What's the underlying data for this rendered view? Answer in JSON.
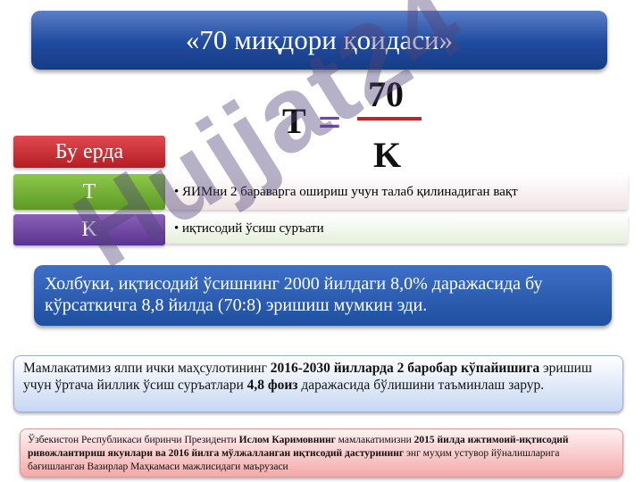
{
  "title": "«70 миқдори қоидаси»",
  "formula": {
    "lhs": "T",
    "eq": "=",
    "numerator": "70",
    "denominator": "K"
  },
  "legend": {
    "header": "Бу ерда",
    "rows": [
      {
        "term": "T",
        "color": "#6aa82c",
        "text": "ЯИМни 2 бараварга ошириш учун талаб қилинадиган вақт"
      },
      {
        "term": "K",
        "color": "#6a3f9a",
        "text": "иқтисодий ўсиш суръати"
      }
    ],
    "header_color": "#c0232b"
  },
  "note_blue": "Холбуки, иқтисодий ўсишнинг 2000 йилдаги 8,0% даражасида бу кўрсаткичга 8,8 йилда (70:8) эришиш мумкин эди.",
  "note_light": {
    "p1": "Мамлакатимиз ялпи ички маҳсулотининг ",
    "b1": "2016-2030 йилларда 2 баробар кўпайишига",
    "p2": " эришиш учун ўртача йиллик ўсиш суръатлари ",
    "b2": "4,8 фоиз",
    "p3": " даражасида бўлишини таъминлаш зарур."
  },
  "source": {
    "p1": "Ўзбекистон Республикаси биринчи Президенти ",
    "b1": "Ислом Каримовнинг",
    "p2": " мамлакатимизни ",
    "b2": "2015 йилда ижтимоий-иқтисодий ривожлантириш якунлари ва 2016 йилга мўлжалланган иқтисодий дастурининг",
    "p3": " энг муҳим устувор йўналишларига бағишланган Вазирлар Маҳкамаси мажлисидаги маърузаси"
  },
  "watermark": "Hujjat24"
}
